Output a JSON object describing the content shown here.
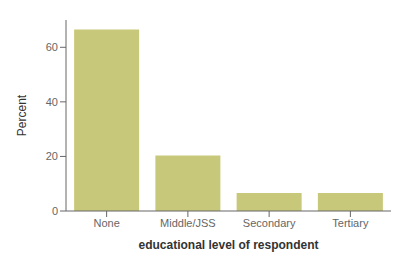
{
  "chart_data": {
    "type": "bar",
    "categories": [
      "None",
      "Middle/JSS",
      "Secondary",
      "Tertiary"
    ],
    "values": [
      66.5,
      20.3,
      6.6,
      6.6
    ],
    "color": "#c8c87a",
    "xlabel": "educational level of respondent",
    "ylabel": "Percent",
    "ylim": [
      0,
      70
    ],
    "yticks": [
      0,
      20,
      40,
      60
    ],
    "grid": false
  }
}
